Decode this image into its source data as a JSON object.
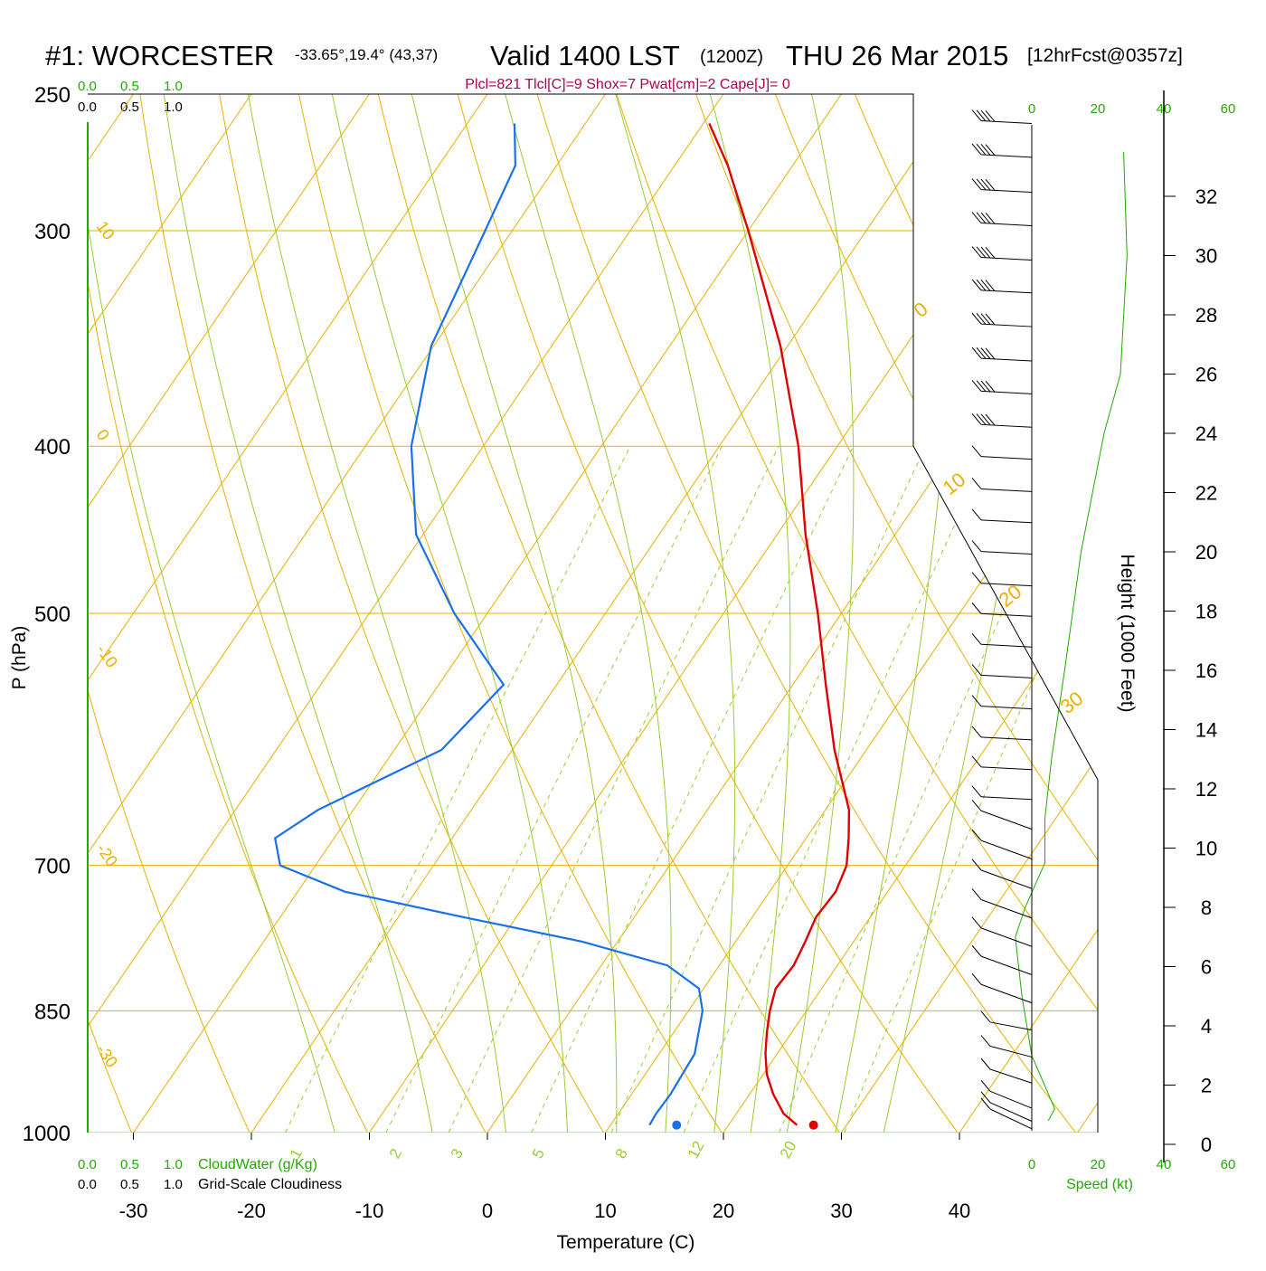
{
  "header": {
    "station": "#1: WORCESTER",
    "location": "-33.65°,19.4° (43,37)",
    "valid": "Valid 1400 LST",
    "utc": "(1200Z)",
    "date": "THU 26 Mar 2015",
    "forecast": "[12hrFcst@0357z]",
    "indices": "Plcl=821 Tlcl[C]=9 Shox=7 Pwat[cm]=2 Cape[J]= 0"
  },
  "cloud_scale": {
    "top_green": [
      "0.0",
      "0.5",
      "1.0"
    ],
    "top_black": [
      "0.0",
      "0.5",
      "1.0"
    ],
    "bottom_green": [
      "0.0",
      "0.5",
      "1.0"
    ],
    "bottom_black": [
      "0.0",
      "0.5",
      "1.0"
    ],
    "cloudwater_label": "CloudWater (g/Kg)",
    "cloudiness_label": "Grid-Scale Cloudiness"
  },
  "speed_scale": {
    "top": [
      "0",
      "20",
      "40",
      "60"
    ],
    "bottom": [
      "0",
      "20",
      "40",
      "60"
    ],
    "label": "Speed (kt)"
  },
  "colors": {
    "isotherm": "#e8b000",
    "dry_adiabat": "#e8b000",
    "moist_adiabat": "#9acd32",
    "mixing_ratio": "#9acd32",
    "temperature": "#e00000",
    "dewpoint": "#1a70e8",
    "wind_speed": "#22aa00",
    "index_text": "#b00050"
  },
  "chart_data": {
    "type": "skew-t",
    "xlabel": "Temperature (C)",
    "ylabel": "P (hPa)",
    "height_label": "Height (1000 Feet)",
    "pressure_ticks": [
      250,
      300,
      400,
      500,
      700,
      850,
      1000
    ],
    "temperature_ticks": [
      -30,
      -20,
      -10,
      0,
      10,
      20,
      30,
      40
    ],
    "height_ticks": [
      0,
      2,
      4,
      6,
      8,
      10,
      12,
      14,
      16,
      18,
      20,
      22,
      24,
      26,
      28,
      30,
      32
    ],
    "isotherm_labels_left": [
      "10",
      "0",
      "-10",
      "-20",
      "-30"
    ],
    "isotherm_labels_right": [
      "0",
      "10",
      "20",
      "30"
    ],
    "mixing_ratio_labels": [
      "1",
      "2",
      "3",
      "5",
      "8",
      "12",
      "20"
    ],
    "temperature_profile": [
      {
        "p": 990,
        "t": 25.8
      },
      {
        "p": 975,
        "t": 24.0
      },
      {
        "p": 950,
        "t": 22.0
      },
      {
        "p": 925,
        "t": 20.3
      },
      {
        "p": 900,
        "t": 19.0
      },
      {
        "p": 875,
        "t": 17.9
      },
      {
        "p": 850,
        "t": 16.9
      },
      {
        "p": 825,
        "t": 16.1
      },
      {
        "p": 800,
        "t": 16.3
      },
      {
        "p": 775,
        "t": 15.9
      },
      {
        "p": 750,
        "t": 15.4
      },
      {
        "p": 725,
        "t": 15.6
      },
      {
        "p": 700,
        "t": 15.0
      },
      {
        "p": 675,
        "t": 13.6
      },
      {
        "p": 650,
        "t": 12.0
      },
      {
        "p": 600,
        "t": 7.3
      },
      {
        "p": 550,
        "t": 2.8
      },
      {
        "p": 500,
        "t": -2.0
      },
      {
        "p": 450,
        "t": -7.6
      },
      {
        "p": 400,
        "t": -13.3
      },
      {
        "p": 350,
        "t": -20.6
      },
      {
        "p": 300,
        "t": -30.0
      },
      {
        "p": 275,
        "t": -35.5
      },
      {
        "p": 260,
        "t": -39.5
      }
    ],
    "dewpoint_profile": [
      {
        "p": 990,
        "td": 13.3
      },
      {
        "p": 975,
        "td": 13.2
      },
      {
        "p": 950,
        "td": 13.3
      },
      {
        "p": 900,
        "td": 13.0
      },
      {
        "p": 850,
        "td": 11.2
      },
      {
        "p": 825,
        "td": 9.6
      },
      {
        "p": 800,
        "td": 5.6
      },
      {
        "p": 775,
        "td": -3.0
      },
      {
        "p": 750,
        "td": -14.5
      },
      {
        "p": 725,
        "td": -26.0
      },
      {
        "p": 700,
        "td": -33.0
      },
      {
        "p": 675,
        "td": -35.0
      },
      {
        "p": 650,
        "td": -33.0
      },
      {
        "p": 600,
        "td": -26.0
      },
      {
        "p": 550,
        "td": -24.5
      },
      {
        "p": 500,
        "td": -32.8
      },
      {
        "p": 450,
        "td": -40.6
      },
      {
        "p": 400,
        "td": -46.1
      },
      {
        "p": 350,
        "td": -50.2
      },
      {
        "p": 300,
        "td": -52.3
      },
      {
        "p": 275,
        "td": -53.5
      },
      {
        "p": 260,
        "td": -56.0
      }
    ],
    "surface_temperature": 27.2,
    "surface_dewpoint": 15.6,
    "wind_speed_profile_kt": [
      {
        "h": 0.8,
        "s": 5
      },
      {
        "h": 1.2,
        "s": 7
      },
      {
        "h": 3,
        "s": 0
      },
      {
        "h": 5,
        "s": -3
      },
      {
        "h": 7,
        "s": -5
      },
      {
        "h": 8,
        "s": -2
      },
      {
        "h": 9.5,
        "s": 4
      },
      {
        "h": 11,
        "s": 4
      },
      {
        "h": 13,
        "s": 6
      },
      {
        "h": 16,
        "s": 10
      },
      {
        "h": 20,
        "s": 15
      },
      {
        "h": 24,
        "s": 22
      },
      {
        "h": 26,
        "s": 27
      },
      {
        "h": 30,
        "s": 29
      },
      {
        "h": 33.5,
        "s": 28
      }
    ]
  }
}
